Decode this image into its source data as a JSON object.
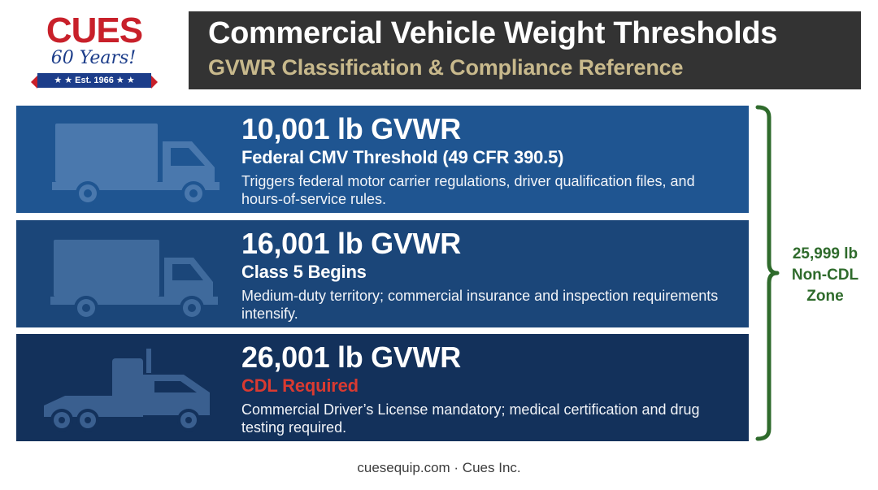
{
  "logo": {
    "wordmark": "CUES",
    "years": "60 Years!",
    "established": "★ ★ Est. 1966 ★ ★"
  },
  "header": {
    "title": "Commercial Vehicle Weight Thresholds",
    "subtitle": "GVWR Classification & Compliance Reference"
  },
  "thresholds": [
    {
      "weight": "10,001 lb GVWR",
      "heading": "Federal CMV Threshold (49 CFR 390.5)",
      "description": "Triggers federal motor carrier regulations, driver qualification files, and hours-of-service rules.",
      "icon": "box-truck-icon",
      "band_color": "#1f5591"
    },
    {
      "weight": "16,001 lb GVWR",
      "heading": "Class 5 Begins",
      "description": "Medium-duty territory; commercial insurance and inspection requirements intensify.",
      "icon": "box-truck-icon",
      "band_color": "#1b4679"
    },
    {
      "weight": "26,001 lb GVWR",
      "heading": "CDL Required",
      "description": "Commercial Driver’s License mandatory; medical certification and drug testing required.",
      "icon": "semi-tractor-icon",
      "band_color": "#13315b",
      "heading_color": "#d93a31"
    }
  ],
  "bracket": {
    "label_line1": "25,999 lb",
    "label_line2": "Non-CDL",
    "label_line3": "Zone",
    "color": "#2f6b2c"
  },
  "footer": {
    "text": "cuesequip.com · Cues Inc."
  }
}
